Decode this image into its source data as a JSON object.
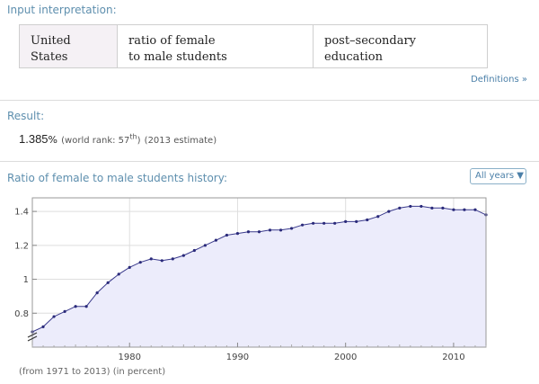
{
  "pods": {
    "input_interpretation": {
      "title": "Input interpretation:",
      "cells": [
        "United States",
        "ratio of female\nto male students",
        "post–secondary education"
      ],
      "definitions_link": "Definitions »"
    },
    "result": {
      "title": "Result:",
      "value": "1.385",
      "unit": "%",
      "rank_prefix": "(world rank: 57",
      "rank_suffix": "th",
      "rank_close": ")",
      "estimate": "(2013 estimate)"
    },
    "history": {
      "title": "Ratio of female to male students history:",
      "dropdown": "All years ▼",
      "footnote": "(from 1971 to 2013)  (in percent)"
    }
  },
  "chart_data": {
    "type": "line",
    "xlim": [
      1971,
      2013
    ],
    "ylim": [
      0.6,
      1.48
    ],
    "xticks": [
      1980,
      1990,
      2000,
      2010
    ],
    "xtick_labels": [
      "1980",
      "1990",
      "2000",
      "2010"
    ],
    "yticks": [
      0.8,
      1.0,
      1.2,
      1.4
    ],
    "ytick_labels": [
      "0.8",
      "1",
      "1.2",
      "1.4"
    ],
    "y_axis_break": true,
    "grid": true,
    "line_color": "#3a3a8c",
    "fill_color": "#ececfb",
    "x": [
      1971,
      1972,
      1973,
      1974,
      1975,
      1976,
      1977,
      1978,
      1979,
      1980,
      1981,
      1982,
      1983,
      1984,
      1985,
      1986,
      1987,
      1988,
      1989,
      1990,
      1991,
      1992,
      1993,
      1994,
      1995,
      1996,
      1997,
      1998,
      1999,
      2000,
      2001,
      2002,
      2003,
      2004,
      2005,
      2006,
      2007,
      2008,
      2009,
      2010,
      2011,
      2012,
      2013
    ],
    "values": [
      0.69,
      0.72,
      0.78,
      0.81,
      0.84,
      0.84,
      0.92,
      0.98,
      1.03,
      1.07,
      1.1,
      1.12,
      1.11,
      1.12,
      1.14,
      1.17,
      1.2,
      1.23,
      1.26,
      1.27,
      1.28,
      1.28,
      1.29,
      1.29,
      1.3,
      1.32,
      1.33,
      1.33,
      1.33,
      1.34,
      1.34,
      1.35,
      1.37,
      1.4,
      1.42,
      1.43,
      1.43,
      1.42,
      1.42,
      1.41,
      1.41,
      1.41,
      1.38
    ]
  }
}
